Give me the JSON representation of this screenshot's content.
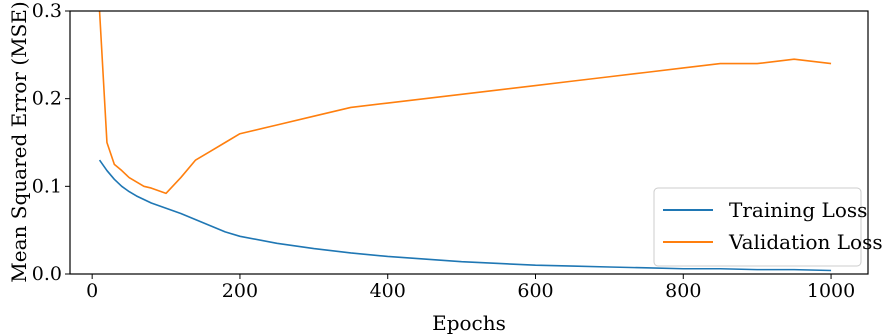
{
  "chart_data": {
    "type": "line",
    "title": "",
    "xlabel": "Epochs",
    "ylabel": "Mean Squared Error (MSE)",
    "xlim": [
      -30,
      1050
    ],
    "ylim": [
      0.0,
      0.3
    ],
    "xticks": [
      0,
      200,
      400,
      600,
      800,
      1000
    ],
    "xtick_labels": [
      "0",
      "200",
      "400",
      "600",
      "800",
      "1000"
    ],
    "yticks": [
      0.0,
      0.1,
      0.2,
      0.3
    ],
    "ytick_labels": [
      "0.0",
      "0.1",
      "0.2",
      "0.3"
    ],
    "grid": false,
    "legend_position": "lower-right",
    "x": [
      10,
      20,
      30,
      40,
      50,
      60,
      70,
      80,
      90,
      100,
      120,
      140,
      160,
      180,
      200,
      250,
      300,
      350,
      400,
      450,
      500,
      550,
      600,
      650,
      700,
      750,
      800,
      850,
      900,
      950,
      1000
    ],
    "series": [
      {
        "name": "Training Loss",
        "color": "#1f77b4",
        "values": [
          0.13,
          0.118,
          0.108,
          0.1,
          0.094,
          0.089,
          0.085,
          0.081,
          0.078,
          0.075,
          0.069,
          0.062,
          0.055,
          0.048,
          0.043,
          0.035,
          0.029,
          0.024,
          0.02,
          0.017,
          0.014,
          0.012,
          0.01,
          0.009,
          0.008,
          0.007,
          0.006,
          0.006,
          0.005,
          0.005,
          0.004
        ]
      },
      {
        "name": "Validation Loss",
        "color": "#ff7f0e",
        "values": [
          0.3,
          0.15,
          0.125,
          0.118,
          0.11,
          0.105,
          0.1,
          0.098,
          0.095,
          0.092,
          0.11,
          0.13,
          0.14,
          0.15,
          0.16,
          0.17,
          0.18,
          0.19,
          0.195,
          0.2,
          0.205,
          0.21,
          0.215,
          0.22,
          0.225,
          0.23,
          0.235,
          0.24,
          0.24,
          0.245,
          0.24
        ]
      }
    ]
  }
}
